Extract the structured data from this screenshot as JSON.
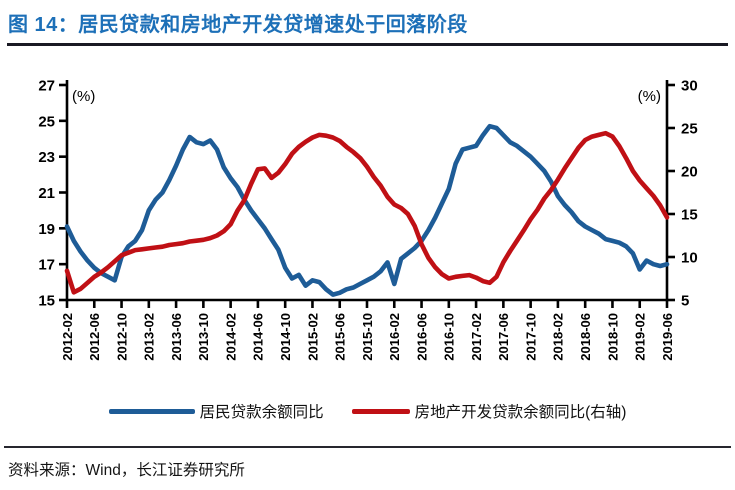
{
  "title": "图 14：居民贷款和房地产开发贷增速处于回落阶段",
  "source_note": "资料来源：Wind，长江证券研究所",
  "colors": {
    "title_blue": "#1D70B8",
    "series_blue": "#1E5C97",
    "series_red": "#C01015",
    "axis_black": "#000000",
    "rule_dark": "#191923"
  },
  "chart_data": {
    "type": "line",
    "title": "居民贷款和房地产开发贷增速",
    "grid": false,
    "legend_position": "bottom",
    "left_axis": {
      "unit": "(%)",
      "min": 15,
      "max": 27,
      "ticks": [
        27,
        25,
        23,
        21,
        19,
        17,
        15
      ]
    },
    "right_axis": {
      "unit": "(%)",
      "min": 5,
      "max": 30,
      "ticks": [
        30,
        25,
        20,
        15,
        10,
        5
      ]
    },
    "x_tick_labels": [
      "2012-02",
      "2012-06",
      "2012-10",
      "2013-02",
      "2013-06",
      "2013-10",
      "2014-02",
      "2014-06",
      "2014-10",
      "2015-02",
      "2015-06",
      "2015-10",
      "2016-02",
      "2016-06",
      "2016-10",
      "2017-02",
      "2017-06",
      "2017-10",
      "2018-02",
      "2018-06",
      "2018-10",
      "2019-02",
      "2019-06"
    ],
    "x": [
      "2012-02",
      "2012-03",
      "2012-04",
      "2012-05",
      "2012-06",
      "2012-07",
      "2012-08",
      "2012-09",
      "2012-10",
      "2012-11",
      "2012-12",
      "2013-01",
      "2013-02",
      "2013-03",
      "2013-04",
      "2013-05",
      "2013-06",
      "2013-07",
      "2013-08",
      "2013-09",
      "2013-10",
      "2013-11",
      "2013-12",
      "2014-01",
      "2014-02",
      "2014-03",
      "2014-04",
      "2014-05",
      "2014-06",
      "2014-07",
      "2014-08",
      "2014-09",
      "2014-10",
      "2014-11",
      "2014-12",
      "2015-01",
      "2015-02",
      "2015-03",
      "2015-04",
      "2015-05",
      "2015-06",
      "2015-07",
      "2015-08",
      "2015-09",
      "2015-10",
      "2015-11",
      "2015-12",
      "2016-01",
      "2016-02",
      "2016-03",
      "2016-04",
      "2016-05",
      "2016-06",
      "2016-07",
      "2016-08",
      "2016-09",
      "2016-10",
      "2016-11",
      "2016-12",
      "2017-01",
      "2017-02",
      "2017-03",
      "2017-04",
      "2017-05",
      "2017-06",
      "2017-07",
      "2017-08",
      "2017-09",
      "2017-10",
      "2017-11",
      "2017-12",
      "2018-01",
      "2018-02",
      "2018-03",
      "2018-04",
      "2018-05",
      "2018-06",
      "2018-07",
      "2018-08",
      "2018-09",
      "2018-10",
      "2018-11",
      "2018-12",
      "2019-01",
      "2019-02",
      "2019-03",
      "2019-04",
      "2019-05",
      "2019-06"
    ],
    "series": [
      {
        "name": "居民贷款余额同比",
        "axis": "left",
        "color": "#1E5C97",
        "values": [
          19.1,
          18.3,
          17.7,
          17.2,
          16.8,
          16.5,
          16.3,
          16.1,
          17.4,
          18.0,
          18.3,
          18.9,
          20.0,
          20.6,
          21.0,
          21.7,
          22.5,
          23.4,
          24.1,
          23.8,
          23.7,
          23.9,
          23.4,
          22.4,
          21.8,
          21.3,
          20.6,
          20.0,
          19.5,
          19.0,
          18.4,
          17.8,
          16.8,
          16.2,
          16.4,
          15.8,
          16.1,
          16.0,
          15.6,
          15.3,
          15.4,
          15.6,
          15.7,
          15.9,
          16.1,
          16.3,
          16.6,
          17.1,
          15.9,
          17.3,
          17.6,
          17.9,
          18.3,
          18.9,
          19.6,
          20.4,
          21.2,
          22.6,
          23.4,
          23.5,
          23.6,
          24.2,
          24.7,
          24.6,
          24.2,
          23.8,
          23.6,
          23.3,
          23.0,
          22.6,
          22.2,
          21.6,
          20.8,
          20.3,
          19.9,
          19.4,
          19.1,
          18.9,
          18.7,
          18.4,
          18.3,
          18.2,
          18.0,
          17.6,
          16.7,
          17.2,
          17.0,
          16.9,
          17.0
        ]
      },
      {
        "name": "房地产开发贷款余额同比(右轴)",
        "axis": "right",
        "color": "#C01015",
        "values": [
          8.4,
          5.9,
          6.3,
          7.0,
          7.7,
          8.2,
          8.8,
          9.5,
          10.2,
          10.5,
          10.8,
          10.9,
          11.0,
          11.1,
          11.2,
          11.4,
          11.5,
          11.6,
          11.8,
          11.9,
          12.0,
          12.2,
          12.5,
          13.0,
          13.8,
          15.4,
          16.6,
          18.5,
          20.2,
          20.3,
          19.2,
          19.8,
          20.8,
          22.0,
          22.8,
          23.4,
          23.9,
          24.2,
          24.1,
          23.9,
          23.5,
          22.8,
          22.2,
          21.5,
          20.5,
          19.3,
          18.3,
          17.0,
          16.1,
          15.7,
          15.0,
          13.6,
          11.5,
          9.9,
          8.8,
          8.0,
          7.5,
          7.7,
          7.8,
          7.9,
          7.6,
          7.2,
          7.0,
          7.7,
          9.4,
          10.7,
          11.9,
          13.1,
          14.4,
          15.5,
          16.8,
          17.8,
          19.0,
          20.3,
          21.5,
          22.7,
          23.6,
          24.0,
          24.2,
          24.4,
          24.0,
          22.9,
          21.5,
          20.0,
          18.9,
          18.0,
          17.1,
          16.0,
          14.6
        ]
      }
    ]
  }
}
